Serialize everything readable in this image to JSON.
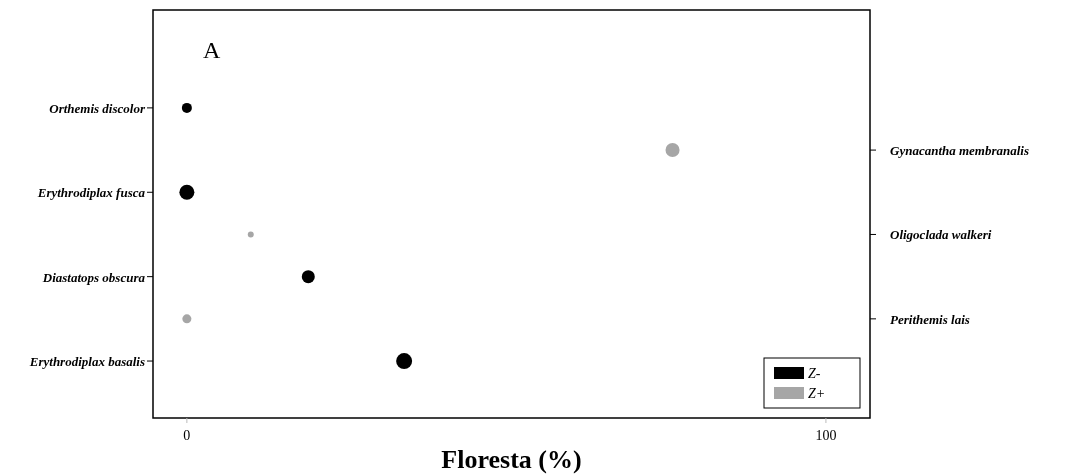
{
  "chart_data": {
    "type": "bubble",
    "orientation": "horizontal",
    "annotations": [
      "A"
    ],
    "xlabel": "Floresta (%)",
    "categories": [
      "Orthemis discolor",
      null,
      "Erythrodiplax fusca",
      null,
      "Diastatops obscura",
      null,
      "Erythrodiplax basalis"
    ],
    "y2_categories": [
      null,
      "Gynacantha membranalis",
      null,
      "Oligoclada walkeri",
      null,
      "Perithemis lais",
      null
    ],
    "series": [
      {
        "name": "Z-",
        "color": "#000000",
        "values": [
          0,
          null,
          0,
          null,
          19,
          null,
          34
        ],
        "sizes": [
          0.39,
          null,
          0.88,
          null,
          0.66,
          null,
          1
        ]
      },
      {
        "name": "Z+",
        "color": "#a6a6a6",
        "values": [
          null,
          76,
          null,
          10,
          null,
          0,
          null
        ],
        "sizes": [
          null,
          0.77,
          null,
          0.14,
          null,
          0.32,
          null
        ]
      }
    ],
    "xlim": [
      -5.3,
      106.9
    ],
    "xticks": [
      0,
      100
    ],
    "legend": "bottom right",
    "grid": false
  }
}
